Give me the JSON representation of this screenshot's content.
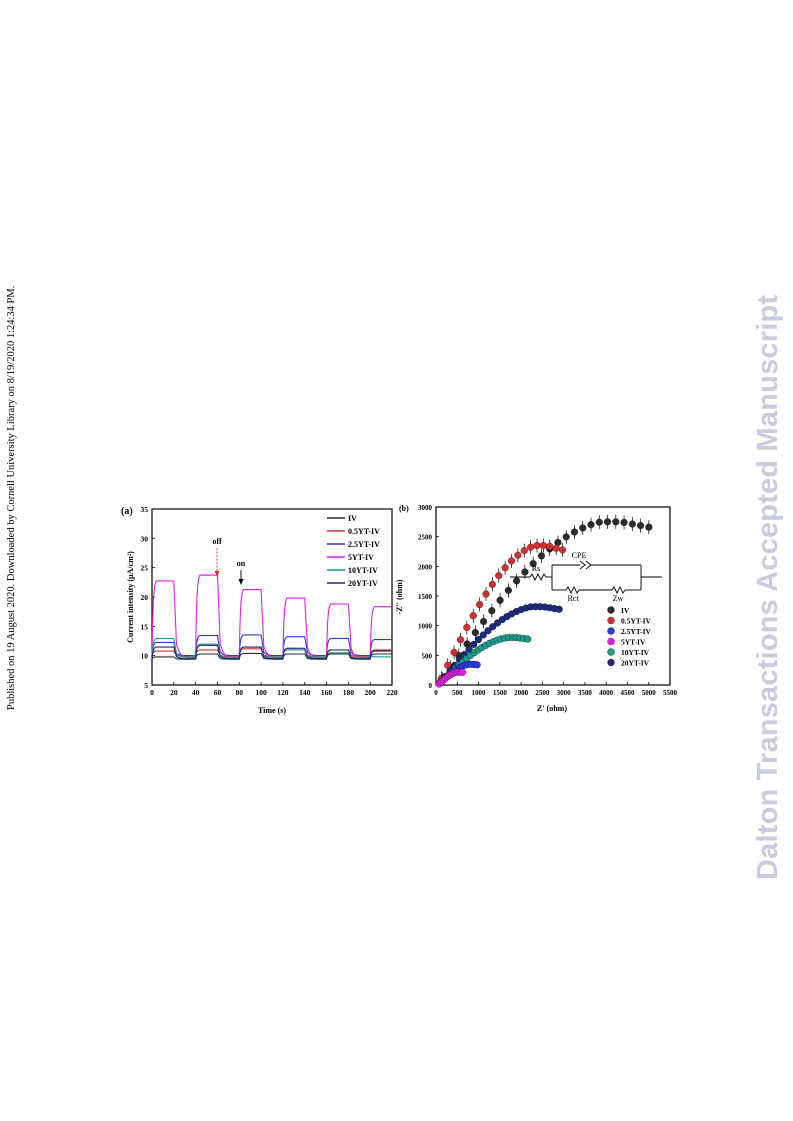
{
  "side_text_left": "Published on 19 August 2020. Downloaded by Cornell University Library on 8/19/2020 1:24:34 PM.",
  "side_text_right": "Dalton Transactions Accepted Manuscript",
  "panel_a": {
    "label": "(a)",
    "annotations": {
      "off": "off",
      "on": "on"
    },
    "legend": [
      "IV",
      "0.5YT-IV",
      "2.5YT-IV",
      "5YT-IV",
      "10YT-IV",
      "20YT-IV"
    ]
  },
  "panel_b": {
    "label": "(b)",
    "legend": [
      "IV",
      "0.5YT-IV",
      "2.5YT-IV",
      "5YT-IV",
      "10YT-IV",
      "20YT-IV"
    ],
    "circuit": {
      "rs": "Rs",
      "cpe": "CPE",
      "rct": "Rct",
      "zw": "Zw"
    }
  },
  "colors": {
    "IV": "#2b2b2b",
    "0.5YT-IV": "#d03030",
    "2.5YT-IV": "#2a3bd8",
    "5YT-IV": "#e020e0",
    "10YT-IV": "#1e9a8a",
    "20YT-IV": "#1c2a7a"
  },
  "chart_data": [
    {
      "type": "line",
      "xlabel": "Time (s)",
      "ylabel": "Current intensity (μA/cm²)",
      "xlim": [
        0,
        220
      ],
      "ylim": [
        5,
        35
      ],
      "xticks": [
        0,
        20,
        40,
        60,
        80,
        100,
        120,
        140,
        160,
        180,
        200,
        220
      ],
      "yticks": [
        5,
        10,
        15,
        20,
        25,
        30,
        35
      ],
      "light_on_intervals": [
        [
          0,
          20
        ],
        [
          40,
          60
        ],
        [
          80,
          100
        ],
        [
          120,
          140
        ],
        [
          160,
          180
        ],
        [
          200,
          220
        ]
      ],
      "series": [
        {
          "name": "IV",
          "on_values": [
            9.8,
            10.3,
            10.4,
            10.3,
            10.3,
            10.3
          ],
          "off_value": 9.4
        },
        {
          "name": "0.5YT-IV",
          "on_values": [
            10.8,
            11.0,
            11.2,
            11.0,
            11.0,
            11.0
          ],
          "off_value": 9.9
        },
        {
          "name": "2.5YT-IV",
          "on_values": [
            12.3,
            13.5,
            13.6,
            13.3,
            13.0,
            12.8
          ],
          "off_value": 10.0
        },
        {
          "name": "5YT-IV",
          "on_values": [
            23.0,
            24.0,
            21.5,
            20.0,
            19.0,
            18.5
          ],
          "off_value": 9.6
        },
        {
          "name": "10YT-IV",
          "on_values": [
            13.0,
            12.0,
            11.5,
            11.0,
            10.5,
            9.8
          ],
          "off_value": 9.7
        },
        {
          "name": "20YT-IV",
          "on_values": [
            11.5,
            11.8,
            11.5,
            11.3,
            11.0,
            10.8
          ],
          "off_value": 9.5
        }
      ]
    },
    {
      "type": "scatter",
      "xlabel": "Z' (ohm)",
      "ylabel": "-Z'' (ohm)",
      "xlim": [
        0,
        5500
      ],
      "ylim": [
        0,
        3000
      ],
      "xticks": [
        0,
        500,
        1000,
        1500,
        2000,
        2500,
        3000,
        3500,
        4000,
        4500,
        5000,
        5500
      ],
      "yticks": [
        0,
        500,
        1000,
        1500,
        2000,
        2500,
        3000
      ],
      "series": [
        {
          "name": "IV",
          "x_end": 5100,
          "peak_y": 2750,
          "points": 26
        },
        {
          "name": "0.5YT-IV",
          "x_end": 3050,
          "peak_y": 2350,
          "points": 20
        },
        {
          "name": "2.5YT-IV",
          "x_end": 1000,
          "peak_y": 350,
          "points": 14
        },
        {
          "name": "5YT-IV",
          "x_end": 650,
          "peak_y": 220,
          "points": 12
        },
        {
          "name": "10YT-IV",
          "x_end": 2200,
          "peak_y": 800,
          "points": 24
        },
        {
          "name": "20YT-IV",
          "x_end": 2950,
          "peak_y": 1320,
          "points": 26
        }
      ]
    }
  ]
}
